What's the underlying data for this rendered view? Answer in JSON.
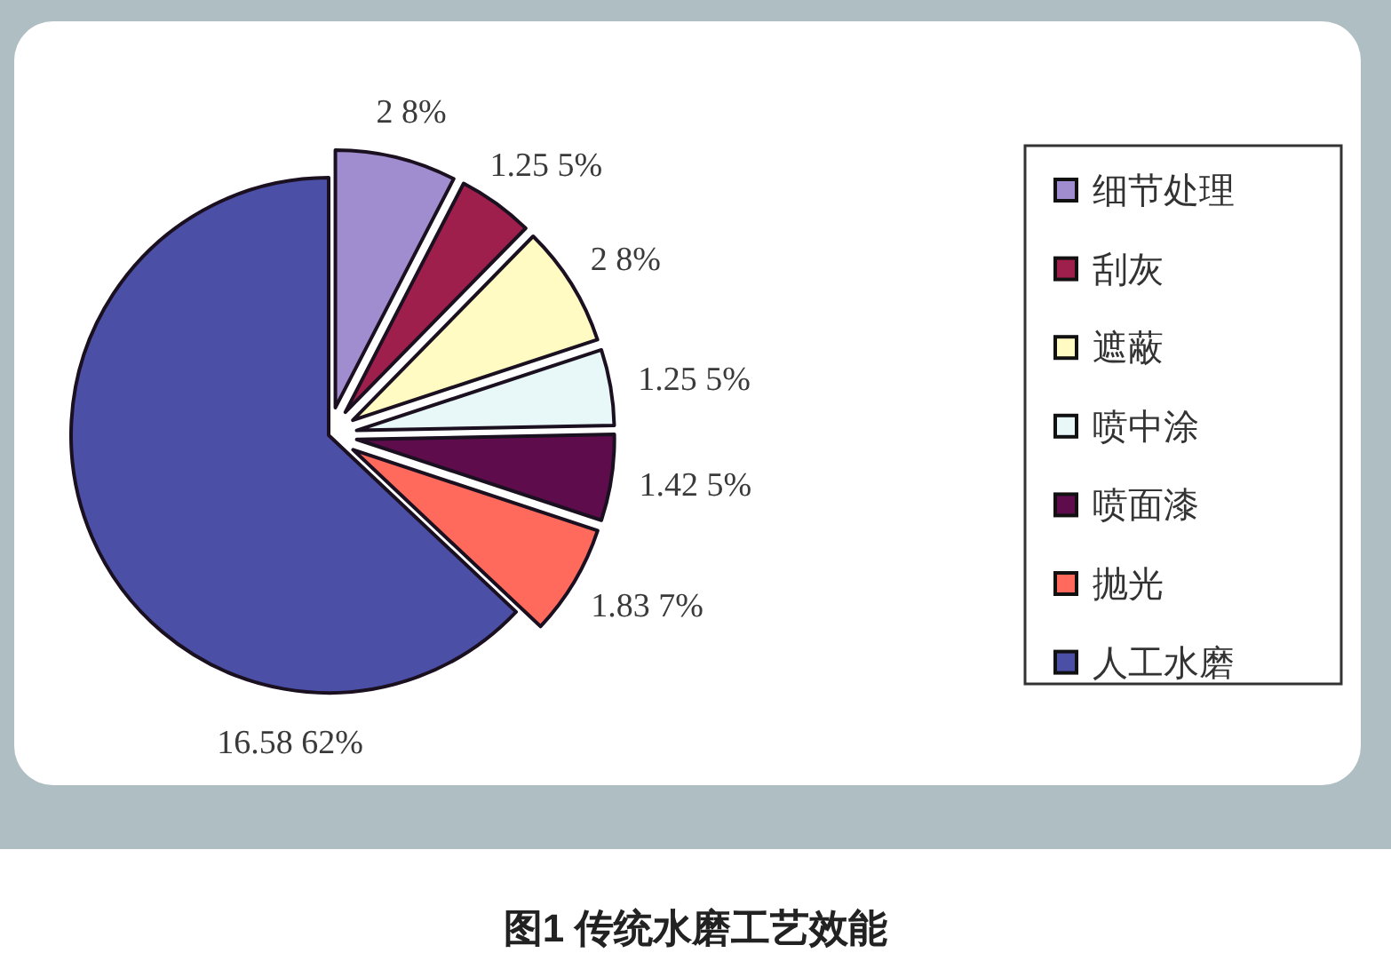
{
  "chart_data": {
    "type": "pie",
    "title": "图1 传统水磨工艺效能",
    "categories": [
      "细节处理",
      "刮灰",
      "遮蔽",
      "喷中涂",
      "喷面漆",
      "抛光",
      "人工水磨"
    ],
    "values": [
      2,
      1.25,
      2,
      1.25,
      1.42,
      1.83,
      16.58
    ],
    "colors": [
      "#9f8dcf",
      "#9e1f4c",
      "#fffbc2",
      "#e8f7f8",
      "#5e0c4c",
      "#ff6a5c",
      "#4b50a6"
    ],
    "value_labels": [
      "2 8%",
      "1.25 5%",
      "2 8%",
      "1.25 5%",
      "1.42 5%",
      "1.83 7%",
      "16.58 62%"
    ],
    "legend": "right"
  }
}
